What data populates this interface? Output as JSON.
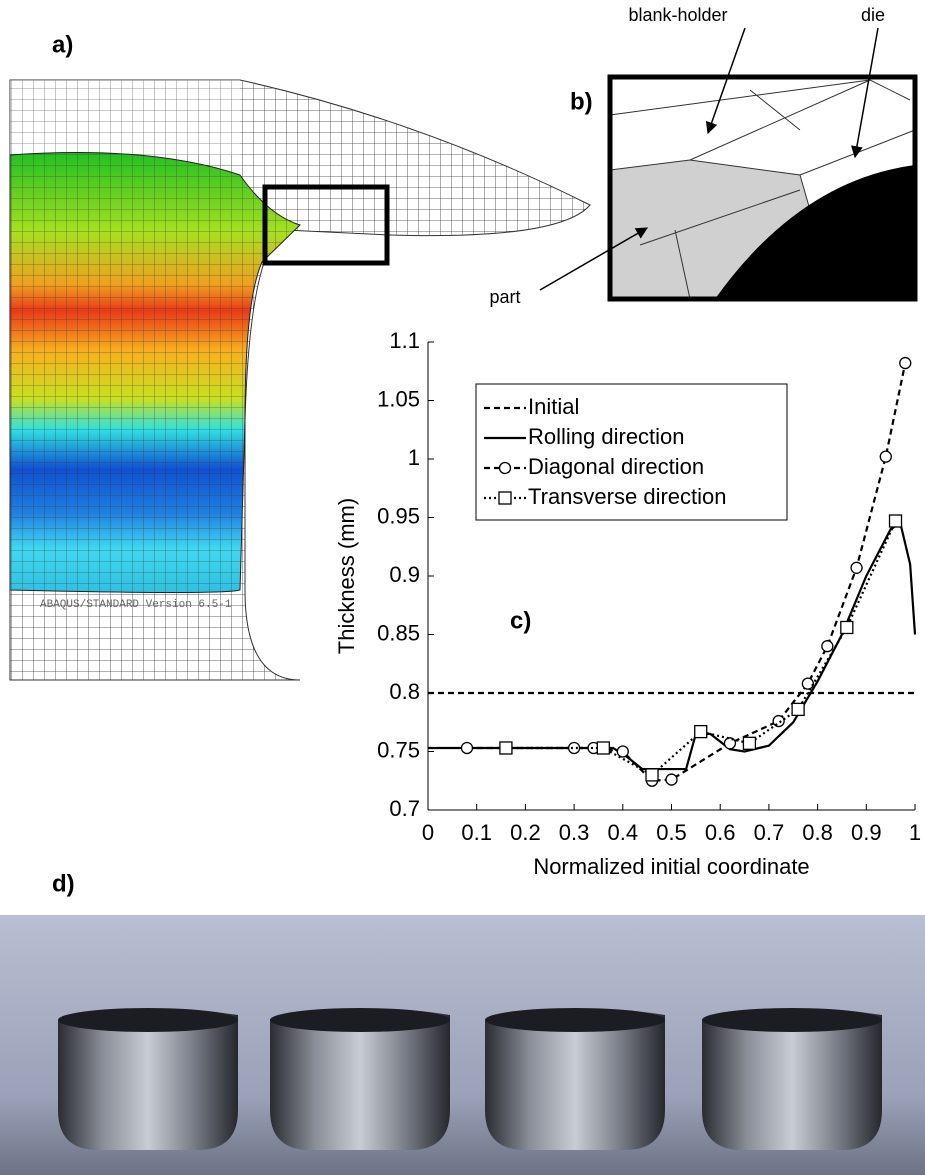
{
  "panels": {
    "a": "a)",
    "b": "b)",
    "c": "c)",
    "d": "d)"
  },
  "fe_caption": "ABAQUS/STANDARD Version 6.5-1",
  "callouts": {
    "blank_holder": "blank-holder",
    "die": "die",
    "part": "part"
  },
  "chart_data": {
    "type": "line",
    "x_label": "Normalized initial coordinate",
    "y_label": "Thickness (mm)",
    "xlim": [
      0,
      1
    ],
    "ylim": [
      0.7,
      1.1
    ],
    "xticks": [
      0,
      0.1,
      0.2,
      0.3,
      0.4,
      0.5,
      0.6,
      0.7,
      0.8,
      0.9,
      1
    ],
    "yticks": [
      0.7,
      0.75,
      0.8,
      0.85,
      0.9,
      0.95,
      1,
      1.05,
      1.1
    ],
    "legend": "upper-left",
    "grid": false,
    "series": [
      {
        "name": "Initial",
        "color": "#000000",
        "dash": "dashed",
        "marker": "none",
        "x": [
          0,
          1
        ],
        "values": [
          0.8,
          0.8
        ]
      },
      {
        "name": "Rolling direction",
        "color": "#000000",
        "dash": "solid",
        "marker": "none",
        "x": [
          0,
          0.38,
          0.41,
          0.44,
          0.5,
          0.53,
          0.55,
          0.58,
          0.62,
          0.65,
          0.7,
          0.75,
          0.8,
          0.85,
          0.9,
          0.95,
          0.97,
          0.99,
          1
        ],
        "values": [
          0.753,
          0.753,
          0.745,
          0.735,
          0.735,
          0.735,
          0.765,
          0.765,
          0.752,
          0.75,
          0.755,
          0.775,
          0.81,
          0.85,
          0.9,
          0.94,
          0.945,
          0.91,
          0.85
        ]
      },
      {
        "name": "Diagonal direction",
        "color": "#000000",
        "dash": "dashed",
        "marker": "circle",
        "x": [
          0.08,
          0.3,
          0.34,
          0.4,
          0.46,
          0.5,
          0.62,
          0.72,
          0.78,
          0.82,
          0.88,
          0.94,
          0.98
        ],
        "values": [
          0.753,
          0.753,
          0.753,
          0.75,
          0.725,
          0.726,
          0.757,
          0.776,
          0.808,
          0.84,
          0.907,
          1.002,
          1.082
        ]
      },
      {
        "name": "Transverse direction",
        "color": "#000000",
        "dash": "dotted",
        "marker": "square",
        "x": [
          0.16,
          0.36,
          0.46,
          0.56,
          0.66,
          0.76,
          0.86,
          0.96
        ],
        "values": [
          0.753,
          0.753,
          0.73,
          0.767,
          0.757,
          0.786,
          0.856,
          0.947
        ]
      }
    ]
  }
}
